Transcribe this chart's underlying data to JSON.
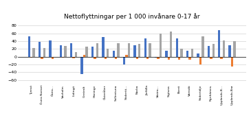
{
  "title": "Nettoflyttningar per 1 000 invånare 0-17 år",
  "categories": [
    "Tyresö",
    "Östra Norrort",
    "Östra...",
    "Vaxholm",
    "Lidingö",
    "Centralt",
    "Haninge",
    "Österåker",
    "Sollentuna",
    "Södertö...",
    "Nacka",
    "Järfälla",
    "Västra...",
    "Sigtuna",
    "Ekerö",
    "Värmdö",
    "Södertälje",
    "Nynhämns",
    "Upplands-B...",
    "Upplands-Brø"
  ],
  "blue": [
    53,
    38,
    42,
    30,
    35,
    -45,
    25,
    50,
    15,
    -20,
    30,
    47,
    -2,
    15,
    47,
    15,
    8,
    28,
    68,
    30
  ],
  "orange": [
    -2,
    -5,
    -5,
    -3,
    -4,
    5,
    -5,
    -5,
    -5,
    5,
    -5,
    -5,
    -5,
    -8,
    -8,
    -8,
    -20,
    -5,
    -5,
    -25
  ],
  "grey": [
    22,
    23,
    0,
    28,
    12,
    25,
    35,
    20,
    35,
    35,
    32,
    35,
    60,
    65,
    20,
    20,
    53,
    32,
    42,
    40
  ],
  "ylim": [
    -70,
    90
  ],
  "yticks": [
    -60,
    -40,
    -20,
    0,
    20,
    40,
    60,
    80
  ],
  "color_blue": "#4472C4",
  "color_orange": "#ED7D31",
  "color_grey": "#A5A5A5",
  "background_color": "#FFFFFF"
}
